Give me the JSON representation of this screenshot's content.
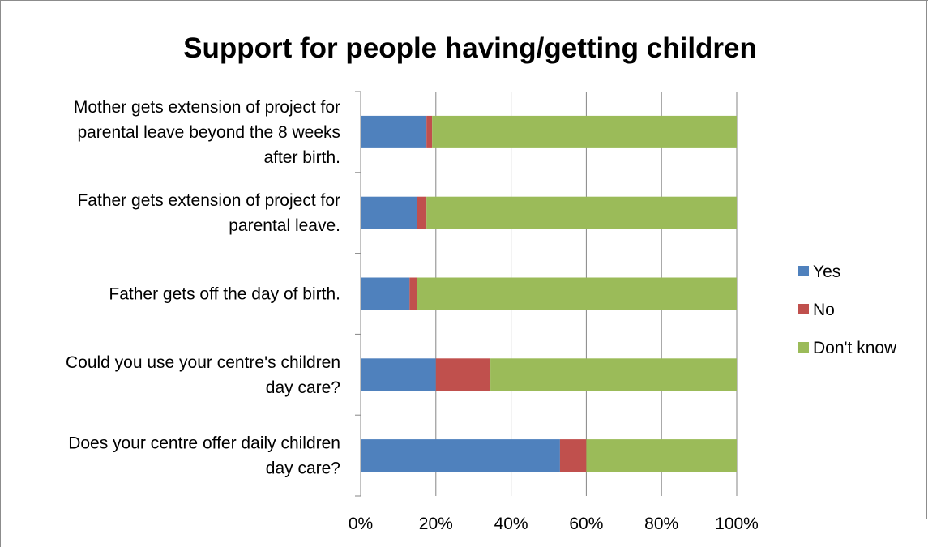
{
  "chart_data": {
    "type": "bar",
    "orientation": "horizontal",
    "stacked": "percent",
    "title": "Support for people having/getting children",
    "categories": [
      [
        "Mother gets extension of project for",
        "parental leave beyond the 8 weeks",
        "after birth."
      ],
      [
        "Father gets extension of project for",
        "parental leave."
      ],
      [
        "Father gets off the day of birth."
      ],
      [
        "Could you use your centre's children",
        "day care?"
      ],
      [
        "Does your centre offer daily children",
        "day care?"
      ]
    ],
    "series": [
      {
        "name": "Yes",
        "color": "#4f81bd",
        "values": [
          17.5,
          15,
          13,
          20,
          53
        ]
      },
      {
        "name": "No",
        "color": "#c0504d",
        "values": [
          1.5,
          2.5,
          2,
          14.5,
          7
        ]
      },
      {
        "name": "Don't know",
        "color": "#9bbb59",
        "values": [
          81,
          82.5,
          85,
          65.5,
          40
        ]
      }
    ],
    "xlim": [
      0,
      100
    ],
    "x_ticks": [
      "0%",
      "20%",
      "40%",
      "60%",
      "80%",
      "100%"
    ],
    "grid": true,
    "legend_position": "right"
  }
}
